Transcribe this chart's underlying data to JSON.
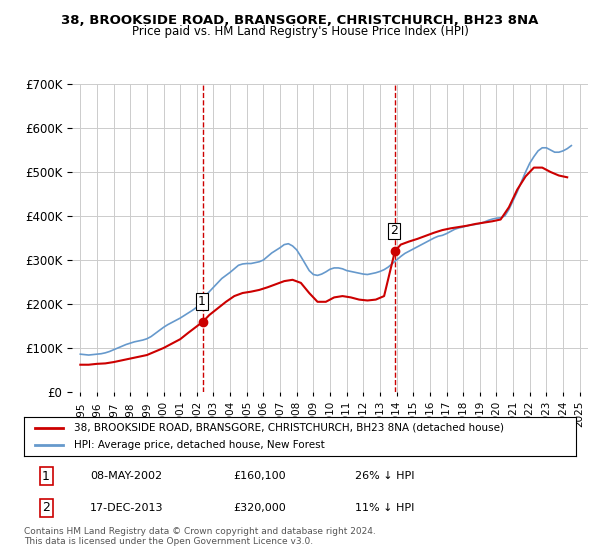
{
  "title": "38, BROOKSIDE ROAD, BRANSGORE, CHRISTCHURCH, BH23 8NA",
  "subtitle": "Price paid vs. HM Land Registry's House Price Index (HPI)",
  "legend_line1": "38, BROOKSIDE ROAD, BRANSGORE, CHRISTCHURCH, BH23 8NA (detached house)",
  "legend_line2": "HPI: Average price, detached house, New Forest",
  "footnote": "Contains HM Land Registry data © Crown copyright and database right 2024.\nThis data is licensed under the Open Government Licence v3.0.",
  "annotation1": {
    "num": "1",
    "date": "08-MAY-2002",
    "price": "£160,100",
    "hpi": "26% ↓ HPI"
  },
  "annotation2": {
    "num": "2",
    "date": "17-DEC-2013",
    "price": "£320,000",
    "hpi": "11% ↓ HPI"
  },
  "red_line_color": "#cc0000",
  "blue_line_color": "#6699cc",
  "dashed_vline_color": "#cc0000",
  "grid_color": "#cccccc",
  "background_color": "#ffffff",
  "hpi_x": [
    1995.0,
    1995.25,
    1995.5,
    1995.75,
    1996.0,
    1996.25,
    1996.5,
    1996.75,
    1997.0,
    1997.25,
    1997.5,
    1997.75,
    1998.0,
    1998.25,
    1998.5,
    1998.75,
    1999.0,
    1999.25,
    1999.5,
    1999.75,
    2000.0,
    2000.25,
    2000.5,
    2000.75,
    2001.0,
    2001.25,
    2001.5,
    2001.75,
    2002.0,
    2002.25,
    2002.5,
    2002.75,
    2003.0,
    2003.25,
    2003.5,
    2003.75,
    2004.0,
    2004.25,
    2004.5,
    2004.75,
    2005.0,
    2005.25,
    2005.5,
    2005.75,
    2006.0,
    2006.25,
    2006.5,
    2006.75,
    2007.0,
    2007.25,
    2007.5,
    2007.75,
    2008.0,
    2008.25,
    2008.5,
    2008.75,
    2009.0,
    2009.25,
    2009.5,
    2009.75,
    2010.0,
    2010.25,
    2010.5,
    2010.75,
    2011.0,
    2011.25,
    2011.5,
    2011.75,
    2012.0,
    2012.25,
    2012.5,
    2012.75,
    2013.0,
    2013.25,
    2013.5,
    2013.75,
    2014.0,
    2014.25,
    2014.5,
    2014.75,
    2015.0,
    2015.25,
    2015.5,
    2015.75,
    2016.0,
    2016.25,
    2016.5,
    2016.75,
    2017.0,
    2017.25,
    2017.5,
    2017.75,
    2018.0,
    2018.25,
    2018.5,
    2018.75,
    2019.0,
    2019.25,
    2019.5,
    2019.75,
    2020.0,
    2020.25,
    2020.5,
    2020.75,
    2021.0,
    2021.25,
    2021.5,
    2021.75,
    2022.0,
    2022.25,
    2022.5,
    2022.75,
    2023.0,
    2023.25,
    2023.5,
    2023.75,
    2024.0,
    2024.25,
    2024.5
  ],
  "hpi_y": [
    86000,
    85000,
    84000,
    85000,
    86000,
    87000,
    89000,
    92000,
    96000,
    100000,
    104000,
    108000,
    111000,
    114000,
    116000,
    118000,
    121000,
    126000,
    133000,
    140000,
    147000,
    153000,
    158000,
    163000,
    168000,
    174000,
    180000,
    186000,
    193000,
    205000,
    218000,
    228000,
    238000,
    248000,
    258000,
    265000,
    272000,
    280000,
    288000,
    291000,
    292000,
    292000,
    294000,
    296000,
    300000,
    308000,
    316000,
    322000,
    328000,
    335000,
    337000,
    332000,
    323000,
    308000,
    292000,
    276000,
    267000,
    265000,
    268000,
    273000,
    279000,
    282000,
    282000,
    280000,
    276000,
    274000,
    272000,
    270000,
    268000,
    267000,
    269000,
    271000,
    274000,
    278000,
    284000,
    292000,
    300000,
    308000,
    315000,
    320000,
    325000,
    330000,
    335000,
    340000,
    345000,
    350000,
    354000,
    356000,
    360000,
    365000,
    370000,
    373000,
    375000,
    378000,
    380000,
    381000,
    383000,
    386000,
    390000,
    393000,
    395000,
    396000,
    400000,
    415000,
    435000,
    455000,
    478000,
    500000,
    520000,
    535000,
    548000,
    555000,
    555000,
    550000,
    545000,
    545000,
    548000,
    553000,
    560000
  ],
  "red_x": [
    1995.0,
    1995.5,
    1996.0,
    1996.5,
    1997.0,
    1997.5,
    1998.0,
    1998.5,
    1999.0,
    1999.5,
    2000.0,
    2000.5,
    2001.0,
    2001.5,
    2002.375,
    2002.75,
    2003.25,
    2003.75,
    2004.25,
    2004.75,
    2005.25,
    2005.75,
    2006.25,
    2006.75,
    2007.25,
    2007.75,
    2008.25,
    2008.75,
    2009.25,
    2009.75,
    2010.25,
    2010.75,
    2011.25,
    2011.75,
    2012.25,
    2012.75,
    2013.25,
    2013.9,
    2014.25,
    2014.75,
    2015.25,
    2015.75,
    2016.25,
    2016.75,
    2017.25,
    2017.75,
    2018.25,
    2018.75,
    2019.25,
    2019.75,
    2020.25,
    2020.75,
    2021.25,
    2021.75,
    2022.25,
    2022.75,
    2023.25,
    2023.75,
    2024.25
  ],
  "red_y": [
    62000,
    62000,
    64000,
    65000,
    68000,
    72000,
    76000,
    80000,
    84000,
    92000,
    100000,
    110000,
    120000,
    135000,
    160100,
    175000,
    190000,
    205000,
    218000,
    225000,
    228000,
    232000,
    238000,
    245000,
    252000,
    255000,
    248000,
    225000,
    205000,
    205000,
    215000,
    218000,
    215000,
    210000,
    208000,
    210000,
    218000,
    320000,
    335000,
    342000,
    348000,
    355000,
    362000,
    368000,
    372000,
    375000,
    378000,
    382000,
    385000,
    388000,
    392000,
    420000,
    460000,
    490000,
    510000,
    510000,
    500000,
    492000,
    488000
  ],
  "marker1_x": 2002.375,
  "marker1_y": 160100,
  "marker2_x": 2013.9,
  "marker2_y": 320000,
  "vline1_x": 2002.375,
  "vline2_x": 2013.9,
  "ylim": [
    0,
    700000
  ],
  "xlim": [
    1994.5,
    2025.5
  ],
  "yticks": [
    0,
    100000,
    200000,
    300000,
    400000,
    500000,
    600000,
    700000
  ],
  "xticks": [
    1995,
    1996,
    1997,
    1998,
    1999,
    2000,
    2001,
    2002,
    2003,
    2004,
    2005,
    2006,
    2007,
    2008,
    2009,
    2010,
    2011,
    2012,
    2013,
    2014,
    2015,
    2016,
    2017,
    2018,
    2019,
    2020,
    2021,
    2022,
    2023,
    2024,
    2025
  ]
}
